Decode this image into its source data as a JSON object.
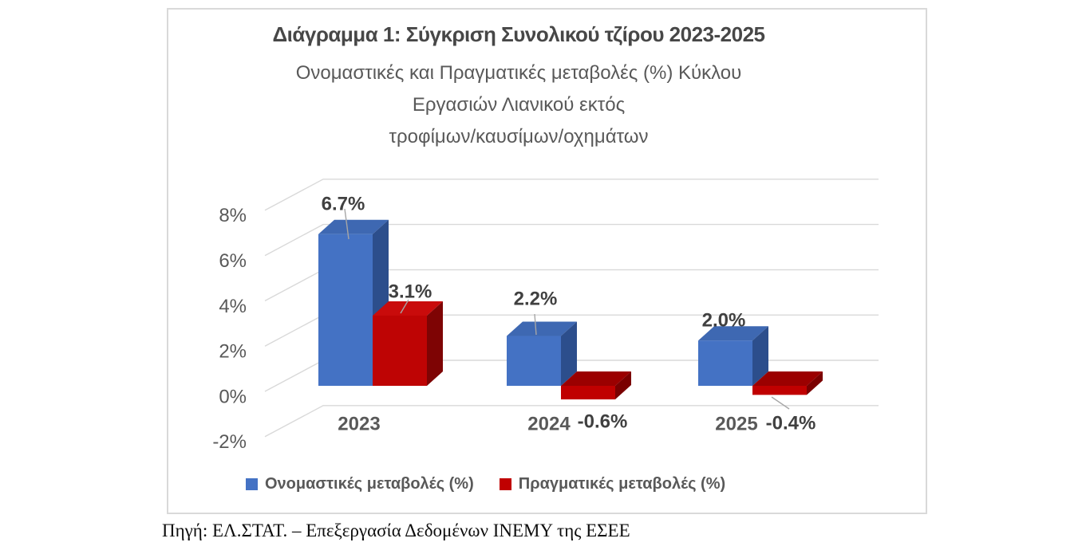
{
  "window": {
    "background": "#FFFFFF",
    "chart_border_color": "#D9D9D9"
  },
  "chart_data": {
    "type": "bar",
    "style": "3d-column",
    "title": "Διάγραμμα 1: Σύγκριση Συνολικού τζίρου 2023-2025",
    "subtitle_lines": [
      "Ονομαστικές και Πραγματικές μεταβολές (%) Κύκλου",
      "Εργασιών Λιανικού εκτός",
      "τροφίμων/καυσίμων/οχημάτων"
    ],
    "categories": [
      "2023",
      "2024",
      "2025"
    ],
    "series": [
      {
        "name": "Ονομαστικές μεταβολές (%)",
        "color": "#4472C4",
        "face_colors": {
          "front": "#4472C4",
          "top": "#3E68B2",
          "side": "#2C4E8C"
        },
        "face_colors_negative": {
          "front": "#4472C4",
          "top": "#2C4E8C",
          "side": "#24407A"
        },
        "values": [
          6.7,
          2.2,
          2.0
        ],
        "data_labels": [
          "6.7%",
          "2.2%",
          "2.0%"
        ]
      },
      {
        "name": "Πραγματικές μεταβολές (%)",
        "color": "#C00000",
        "face_colors": {
          "front": "#BE0404",
          "top": "#C90B0B",
          "side": "#7E0404"
        },
        "face_colors_negative": {
          "front": "#C00000",
          "top": "#9B0000",
          "side": "#7A0000"
        },
        "values": [
          3.1,
          -0.6,
          -0.4
        ],
        "data_labels": [
          "3.1%",
          "-0.6%",
          "-0.4%"
        ]
      }
    ],
    "y_axis": {
      "tick_values": [
        8,
        6,
        4,
        2,
        0,
        -2
      ],
      "tick_labels": [
        "8%",
        "6%",
        "4%",
        "2%",
        "0%",
        "-2%"
      ],
      "range": [
        -2,
        8
      ],
      "unit": "%",
      "gridlines": true,
      "gridline_color": "#D9D9D9"
    },
    "leader_line_color": "#A6A6A6",
    "legend_position": "bottom",
    "text_colors": {
      "title": "#474747",
      "subtitle": "#595959",
      "axis": "#595959",
      "data_label": "#404040"
    }
  },
  "footer": {
    "source": "Πηγή: ΕΛ.ΣΤΑΤ. – Επεξεργασία Δεδομένων ΙΝΕΜΥ της ΕΣΕΕ"
  }
}
